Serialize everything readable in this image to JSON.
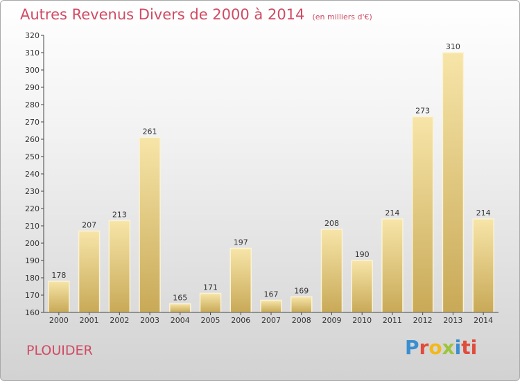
{
  "chart_data": {
    "type": "bar",
    "title": "Autres Revenus Divers de 2000 à 2014",
    "subtitle": "(en milliers d'€)",
    "categories": [
      "2000",
      "2001",
      "2002",
      "2003",
      "2004",
      "2005",
      "2006",
      "2007",
      "2008",
      "2009",
      "2010",
      "2011",
      "2012",
      "2013",
      "2014"
    ],
    "values": [
      178,
      207,
      213,
      261,
      165,
      171,
      197,
      167,
      169,
      208,
      190,
      214,
      273,
      310,
      214
    ],
    "ylim": [
      160,
      320
    ],
    "ytick_step": 10,
    "grid": false,
    "colors": {
      "bar_light": "#f6e2a4",
      "bar_dark": "#c9aa58",
      "title": "#d04a63"
    }
  },
  "commune": "PLOUIDER",
  "logo": [
    "P",
    "r",
    "o",
    "x",
    "i",
    "ti"
  ]
}
